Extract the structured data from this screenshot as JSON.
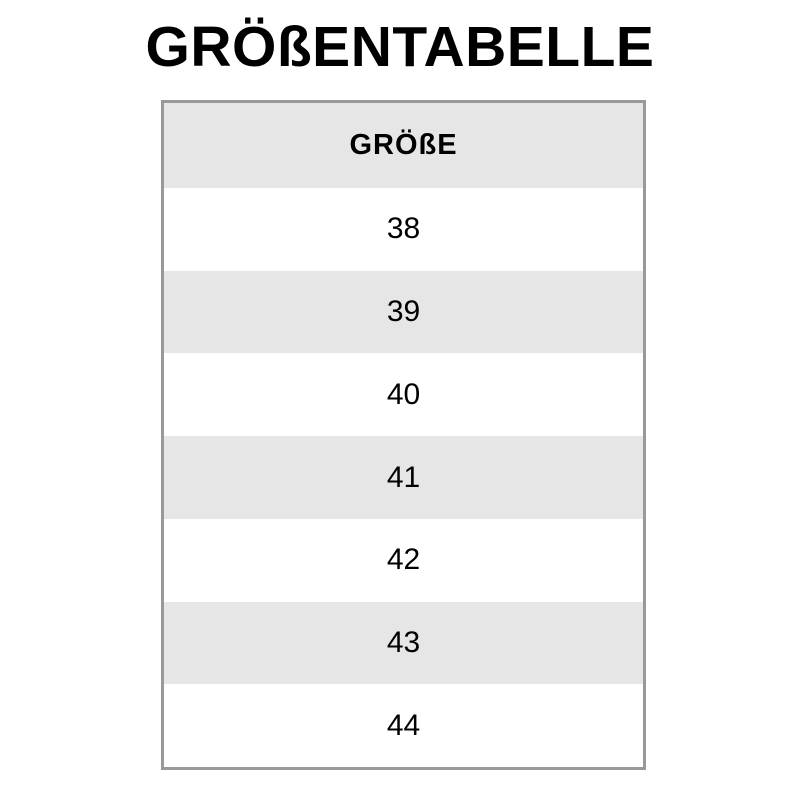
{
  "page": {
    "title": "GRÖßENTABELLE"
  },
  "table": {
    "header": "GRÖßE",
    "rows": [
      "38",
      "39",
      "40",
      "41",
      "42",
      "43",
      "44"
    ],
    "colors": {
      "header_bg": "#e6e6e6",
      "row_alt_bg": "#e6e6e6",
      "row_bg": "#ffffff",
      "border": "#999999",
      "text": "#000000",
      "page_bg": "#ffffff"
    }
  },
  "chart_data": {
    "type": "table",
    "title": "GRÖßENTABELLE",
    "columns": [
      "GRÖßE"
    ],
    "rows": [
      [
        "38"
      ],
      [
        "39"
      ],
      [
        "40"
      ],
      [
        "41"
      ],
      [
        "42"
      ],
      [
        "43"
      ],
      [
        "44"
      ]
    ],
    "layout": {
      "header_background": "#e6e6e6",
      "alternating_row_background": "#e6e6e6",
      "border": "#999999",
      "alignment": "center"
    }
  }
}
